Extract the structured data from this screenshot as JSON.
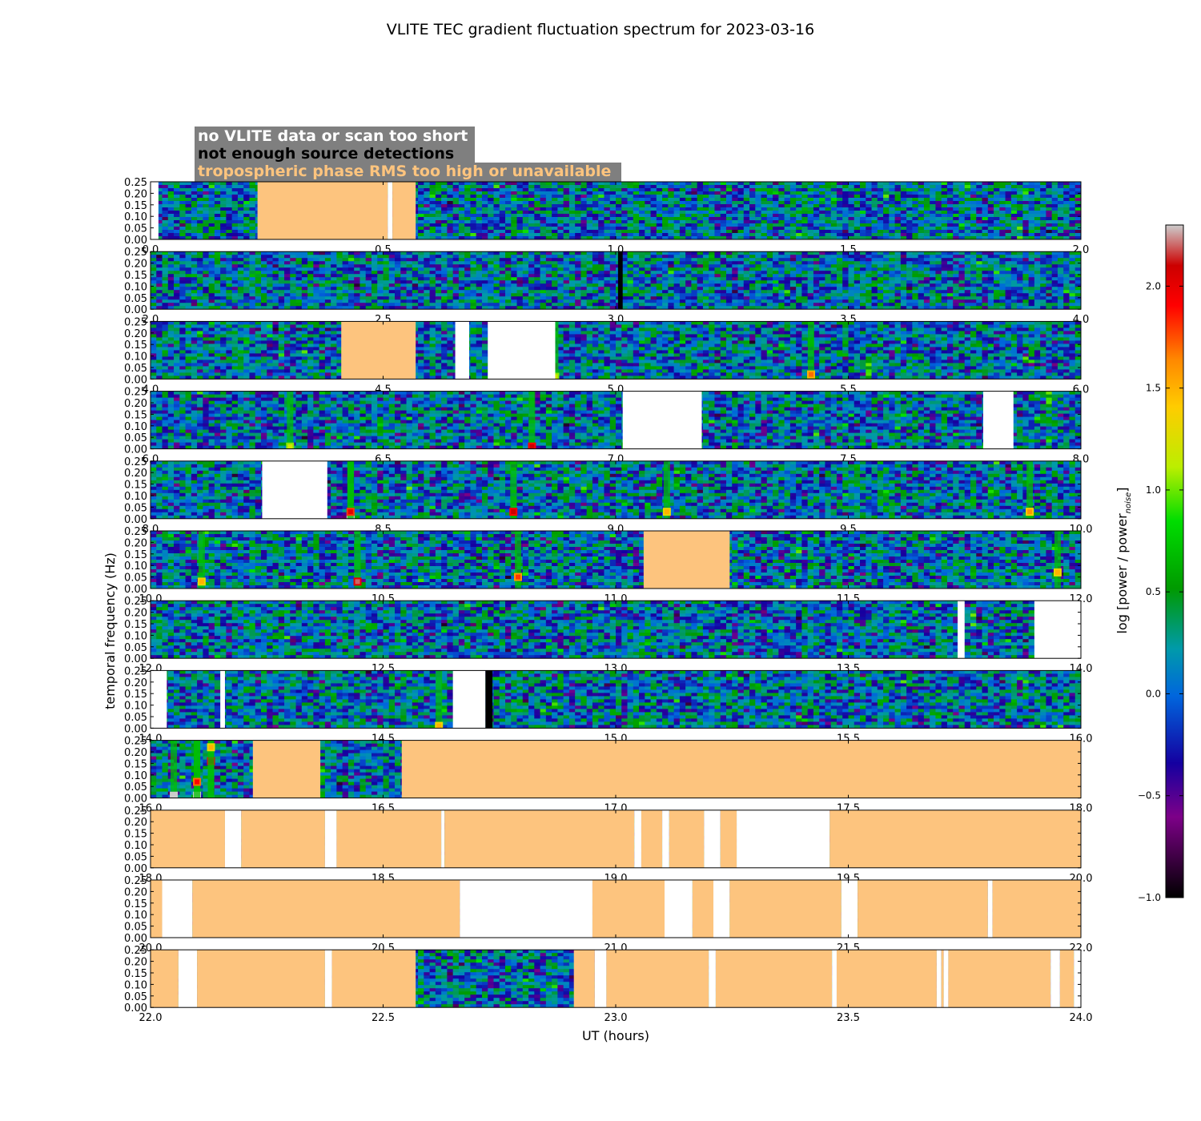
{
  "chart_data": {
    "type": "heatmap",
    "title": "VLITE TEC gradient fluctuation spectrum for 2023-03-16",
    "xlabel": "UT (hours)",
    "ylabel": "temporal frequency (Hz)",
    "colorbar": {
      "label": "log [power / power",
      "label_subscript": "noise",
      "label_end": "]",
      "range": [
        -1.0,
        2.3
      ],
      "ticks": [
        -1.0,
        -0.5,
        0.0,
        0.5,
        1.0,
        1.5,
        2.0
      ],
      "tick_labels": [
        "−1.0",
        "−0.5",
        "0.0",
        "0.5",
        "1.0",
        "1.5",
        "2.0"
      ]
    },
    "legend": {
      "placement": "top-left",
      "entries": [
        {
          "label": "no VLITE data or scan too short",
          "color": "#ffffff",
          "category": "white"
        },
        {
          "label": "not enough source detections",
          "color": "#000000",
          "category": "black"
        },
        {
          "label": "tropospheric phase RMS too high or unavailable",
          "color": "#fdc47e",
          "category": "orange"
        }
      ]
    },
    "y_ticks": [
      "0.00",
      "0.05",
      "0.10",
      "0.15",
      "0.20",
      "0.25"
    ],
    "ylim": [
      0.0,
      0.25
    ],
    "panels": [
      {
        "xlim": [
          0.0,
          2.0
        ],
        "x_ticks": [
          "0.0",
          "0.5",
          "1.0",
          "1.5",
          "2.0"
        ],
        "flags": [
          [
            0.0,
            0.017,
            "white"
          ],
          [
            0.23,
            0.51,
            "orange"
          ],
          [
            0.51,
            0.52,
            "white"
          ],
          [
            0.52,
            0.57,
            "orange"
          ]
        ],
        "hotspots": []
      },
      {
        "xlim": [
          2.0,
          4.0
        ],
        "x_ticks": [
          "2.0",
          "2.5",
          "3.0",
          "3.5",
          "4.0"
        ],
        "flags": [
          [
            3.005,
            3.015,
            "black"
          ]
        ],
        "hotspots": []
      },
      {
        "xlim": [
          4.0,
          6.0
        ],
        "x_ticks": [
          "4.0",
          "4.5",
          "5.0",
          "5.5",
          "6.0"
        ],
        "flags": [
          [
            4.41,
            4.57,
            "orange"
          ],
          [
            4.655,
            4.685,
            "white"
          ],
          [
            4.725,
            4.87,
            "white"
          ]
        ],
        "hotspots": [
          [
            5.42,
            0.02,
            1.5
          ],
          [
            4.87,
            0.01,
            1.0
          ]
        ]
      },
      {
        "xlim": [
          6.0,
          8.0
        ],
        "x_ticks": [
          "6.0",
          "6.5",
          "7.0",
          "7.5",
          "8.0"
        ],
        "flags": [
          [
            7.015,
            7.185,
            "white"
          ],
          [
            7.79,
            7.855,
            "white"
          ]
        ],
        "hotspots": [
          [
            6.82,
            0.01,
            1.9
          ],
          [
            6.3,
            0.01,
            1.0
          ]
        ]
      },
      {
        "xlim": [
          8.0,
          10.0
        ],
        "x_ticks": [
          "8.0",
          "8.5",
          "9.0",
          "9.5",
          "10.0"
        ],
        "flags": [
          [
            8.24,
            8.38,
            "white"
          ]
        ],
        "hotspots": [
          [
            8.43,
            0.01,
            2.3
          ],
          [
            8.43,
            0.03,
            1.8
          ],
          [
            8.78,
            0.03,
            1.9
          ],
          [
            9.11,
            0.03,
            1.3
          ],
          [
            9.89,
            0.03,
            1.4
          ]
        ]
      },
      {
        "xlim": [
          10.0,
          12.0
        ],
        "x_ticks": [
          "10.0",
          "10.5",
          "11.0",
          "11.5",
          "12.0"
        ],
        "flags": [
          [
            11.06,
            11.245,
            "orange"
          ]
        ],
        "hotspots": [
          [
            10.445,
            0.03,
            2.0
          ],
          [
            10.79,
            0.05,
            1.6
          ],
          [
            10.11,
            0.03,
            1.3
          ],
          [
            11.95,
            0.07,
            1.3
          ]
        ]
      },
      {
        "xlim": [
          12.0,
          14.0
        ],
        "x_ticks": [
          "12.0",
          "12.5",
          "13.0",
          "13.5",
          "14.0"
        ],
        "flags": [
          [
            13.735,
            13.75,
            "white"
          ],
          [
            13.9,
            14.0,
            "white"
          ]
        ],
        "hotspots": []
      },
      {
        "xlim": [
          14.0,
          16.0
        ],
        "x_ticks": [
          "14.0",
          "14.5",
          "15.0",
          "15.5",
          "16.0"
        ],
        "flags": [
          [
            14.0,
            14.035,
            "white"
          ],
          [
            14.15,
            14.16,
            "white"
          ],
          [
            14.65,
            14.72,
            "white"
          ],
          [
            14.72,
            14.735,
            "black"
          ]
        ],
        "hotspots": [
          [
            14.62,
            0.01,
            1.3
          ]
        ]
      },
      {
        "xlim": [
          16.0,
          18.0
        ],
        "x_ticks": [
          "16.0",
          "16.5",
          "17.0",
          "17.5",
          "18.0"
        ],
        "flags": [
          [
            16.22,
            16.365,
            "orange"
          ],
          [
            16.54,
            18.0,
            "orange"
          ]
        ],
        "hotspots": [
          [
            16.1,
            0.01,
            2.3
          ],
          [
            16.05,
            0.01,
            2.3
          ],
          [
            16.13,
            0.16,
            1.9
          ],
          [
            16.1,
            0.07,
            1.7
          ],
          [
            16.13,
            0.22,
            1.3
          ]
        ]
      },
      {
        "xlim": [
          18.0,
          20.0
        ],
        "x_ticks": [
          "18.0",
          "18.5",
          "19.0",
          "19.5",
          "20.0"
        ],
        "flags": [
          [
            18.0,
            18.16,
            "orange"
          ],
          [
            18.16,
            18.195,
            "white"
          ],
          [
            18.195,
            18.375,
            "orange"
          ],
          [
            18.375,
            18.4,
            "white"
          ],
          [
            18.4,
            18.625,
            "orange"
          ],
          [
            18.625,
            18.632,
            "white"
          ],
          [
            18.632,
            19.04,
            "orange"
          ],
          [
            19.04,
            19.055,
            "white"
          ],
          [
            19.055,
            19.1,
            "orange"
          ],
          [
            19.1,
            19.115,
            "white"
          ],
          [
            19.115,
            19.19,
            "orange"
          ],
          [
            19.19,
            19.225,
            "white"
          ],
          [
            19.225,
            19.26,
            "orange"
          ],
          [
            19.26,
            19.46,
            "white"
          ],
          [
            19.46,
            20.0,
            "orange"
          ]
        ],
        "hotspots": []
      },
      {
        "xlim": [
          20.0,
          22.0
        ],
        "x_ticks": [
          "20.0",
          "20.5",
          "21.0",
          "21.5",
          "22.0"
        ],
        "flags": [
          [
            20.0,
            20.025,
            "orange"
          ],
          [
            20.025,
            20.09,
            "white"
          ],
          [
            20.09,
            20.665,
            "orange"
          ],
          [
            20.665,
            20.95,
            "white"
          ],
          [
            20.95,
            21.105,
            "orange"
          ],
          [
            21.105,
            21.165,
            "white"
          ],
          [
            21.165,
            21.21,
            "orange"
          ],
          [
            21.21,
            21.245,
            "white"
          ],
          [
            21.245,
            21.485,
            "orange"
          ],
          [
            21.485,
            21.52,
            "white"
          ],
          [
            21.52,
            21.8,
            "orange"
          ],
          [
            21.8,
            21.81,
            "white"
          ],
          [
            21.81,
            22.0,
            "orange"
          ]
        ],
        "hotspots": []
      },
      {
        "xlim": [
          22.0,
          24.0
        ],
        "x_ticks": [
          "22.0",
          "22.5",
          "23.0",
          "23.5",
          "24.0"
        ],
        "flags": [
          [
            22.0,
            22.06,
            "orange"
          ],
          [
            22.06,
            22.1,
            "white"
          ],
          [
            22.1,
            22.375,
            "orange"
          ],
          [
            22.375,
            22.39,
            "white"
          ],
          [
            22.39,
            22.57,
            "orange"
          ],
          [
            22.91,
            22.955,
            "orange"
          ],
          [
            22.955,
            22.98,
            "white"
          ],
          [
            22.98,
            23.2,
            "orange"
          ],
          [
            23.2,
            23.215,
            "white"
          ],
          [
            23.215,
            23.465,
            "orange"
          ],
          [
            23.465,
            23.475,
            "white"
          ],
          [
            23.475,
            23.69,
            "orange"
          ],
          [
            23.69,
            23.7,
            "white"
          ],
          [
            23.7,
            23.705,
            "orange"
          ],
          [
            23.705,
            23.715,
            "white"
          ],
          [
            23.715,
            23.935,
            "orange"
          ],
          [
            23.935,
            23.955,
            "white"
          ],
          [
            23.955,
            23.985,
            "orange"
          ],
          [
            23.985,
            24.0,
            "white"
          ]
        ],
        "hotspots": []
      }
    ]
  }
}
